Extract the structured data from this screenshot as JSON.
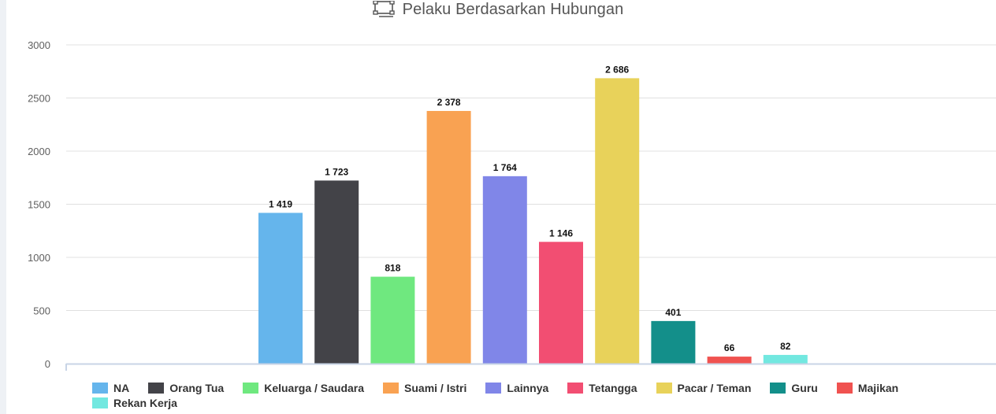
{
  "header": {
    "title": "Pelaku Berdasarkan Hubungan"
  },
  "chart_data": {
    "type": "bar",
    "title": "Pelaku Berdasarkan Hubungan",
    "xlabel": "",
    "ylabel": "",
    "ylim": [
      0,
      3000
    ],
    "yticks": [
      0,
      500,
      1000,
      1500,
      2000,
      2500,
      3000
    ],
    "grid": true,
    "legend_position": "bottom",
    "series": [
      {
        "name": "NA",
        "value": 1419,
        "label": "1 419",
        "color": "#65b5ec"
      },
      {
        "name": "Orang Tua",
        "value": 1723,
        "label": "1 723",
        "color": "#434348"
      },
      {
        "name": "Keluarga / Saudara",
        "value": 818,
        "label": "818",
        "color": "#6fe87f"
      },
      {
        "name": "Suami / Istri",
        "value": 2378,
        "label": "2 378",
        "color": "#f9a252"
      },
      {
        "name": "Lainnya",
        "value": 1764,
        "label": "1 764",
        "color": "#8086e8"
      },
      {
        "name": "Tetangga",
        "value": 1146,
        "label": "1 146",
        "color": "#f24e72"
      },
      {
        "name": "Pacar / Teman",
        "value": 2686,
        "label": "2 686",
        "color": "#e8d25a"
      },
      {
        "name": "Guru",
        "value": 401,
        "label": "401",
        "color": "#138f8a"
      },
      {
        "name": "Majikan",
        "value": 66,
        "label": "66",
        "color": "#f05250"
      },
      {
        "name": "Rekan Kerja",
        "value": 82,
        "label": "82",
        "color": "#72e8e0"
      }
    ]
  }
}
